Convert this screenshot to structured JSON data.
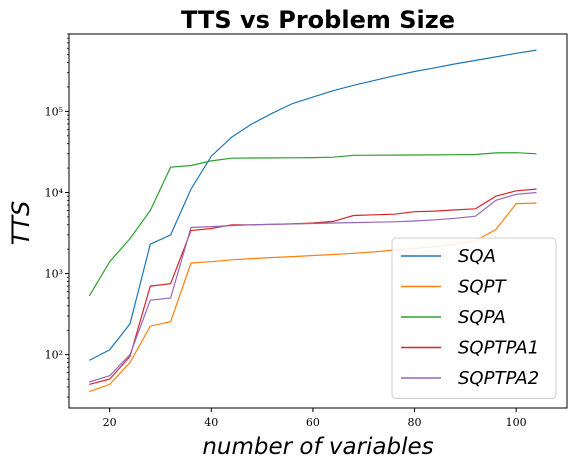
{
  "chart_data": {
    "type": "line",
    "title": "TTS vs Problem Size",
    "xlabel": "number of variables",
    "ylabel": "TTS",
    "yscale": "log",
    "xlim": [
      12,
      110
    ],
    "ylim": [
      22,
      900000
    ],
    "xticks": [
      20,
      40,
      60,
      80,
      100
    ],
    "xtick_labels": [
      "20",
      "40",
      "60",
      "80",
      "100"
    ],
    "yticks": [
      100,
      1000,
      10000,
      100000
    ],
    "ytick_labels": [
      "10²",
      "10³",
      "10⁴",
      "10⁵"
    ],
    "grid": false,
    "legend_position": "lower-right",
    "x": [
      16,
      20,
      24,
      28,
      32,
      36,
      40,
      44,
      48,
      52,
      56,
      60,
      64,
      68,
      72,
      76,
      80,
      84,
      88,
      92,
      96,
      100,
      104
    ],
    "series": [
      {
        "name": "SQA",
        "color": "#1f77b4",
        "values": [
          85,
          115,
          240,
          2300,
          3000,
          11000,
          28000,
          48000,
          70000,
          95000,
          125000,
          150000,
          180000,
          210000,
          240000,
          275000,
          310000,
          345000,
          385000,
          425000,
          470000,
          520000,
          570000
        ]
      },
      {
        "name": "SQPT",
        "color": "#ff7f0e",
        "values": [
          35,
          43,
          80,
          225,
          255,
          1350,
          1400,
          1480,
          1530,
          1580,
          1620,
          1670,
          1720,
          1780,
          1850,
          1950,
          2050,
          2150,
          2300,
          2550,
          3500,
          7300,
          7400
        ]
      },
      {
        "name": "SQPA",
        "color": "#2ca02c",
        "values": [
          530,
          1400,
          2700,
          6000,
          20500,
          21500,
          24500,
          26500,
          26600,
          26700,
          26800,
          26900,
          27200,
          28700,
          28800,
          28900,
          29000,
          29100,
          29200,
          29400,
          30800,
          30900,
          30000
        ]
      },
      {
        "name": "SQPTPA1",
        "color": "#d62728",
        "values": [
          43,
          50,
          95,
          700,
          750,
          3400,
          3600,
          4000,
          4000,
          4050,
          4100,
          4200,
          4400,
          5200,
          5300,
          5400,
          5800,
          5900,
          6100,
          6300,
          9000,
          10500,
          11000
        ]
      },
      {
        "name": "SQPTPA2",
        "color": "#9467bd",
        "values": [
          46,
          55,
          100,
          470,
          500,
          3700,
          3800,
          3900,
          4000,
          4050,
          4100,
          4150,
          4200,
          4250,
          4300,
          4350,
          4450,
          4600,
          4800,
          5100,
          8000,
          9500,
          10000
        ]
      }
    ]
  }
}
